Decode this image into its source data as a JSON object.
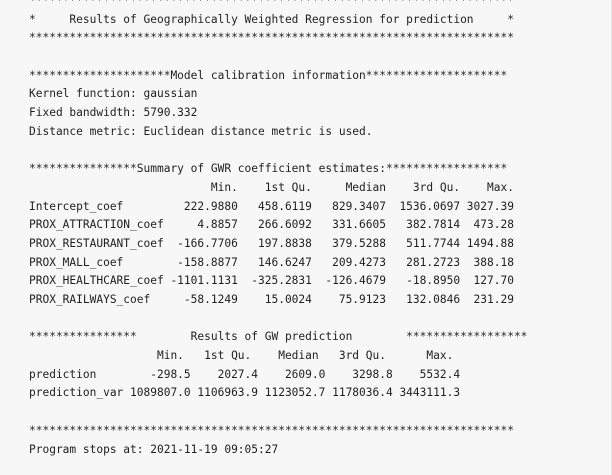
{
  "console_output": [
    "************************************************************************",
    "*     Results of Geographically Weighted Regression for prediction     *",
    "************************************************************************",
    "",
    "*********************Model calibration information*********************",
    "Kernel function: gaussian",
    "Fixed bandwidth: 5790.332",
    "Distance metric: Euclidean distance metric is used.",
    "",
    "****************Summary of GWR coefficient estimates:******************",
    "                           Min.    1st Qu.     Median    3rd Qu.    Max.",
    "Intercept_coef         222.9880   458.6119   829.3407  1536.0697 3027.39",
    "PROX_ATTRACTION_coef     4.8857   266.6092   331.6605   382.7814  473.28",
    "PROX_RESTAURANT_coef  -166.7706   197.8838   379.5288   511.7744 1494.88",
    "PROX_MALL_coef        -158.8877   146.6247   209.4273   281.2723  388.18",
    "PROX_HEALTHCARE_coef -1101.1131  -325.2831  -126.4679   -18.8950  127.70",
    "PROX_RAILWAYS_coef     -58.1249    15.0024    75.9123   132.0846  231.29",
    "",
    "****************        Results of GW prediction        ******************",
    "                   Min.   1st Qu.    Median   3rd Qu.      Max.",
    "prediction        -298.5    2027.4    2609.0    3298.8    5532.4",
    "prediction_var 1089807.0 1106963.9 1123052.7 1178036.4 3443111.3",
    "",
    "************************************************************************",
    "Program stops at: 2021-11-19 09:05:27"
  ]
}
